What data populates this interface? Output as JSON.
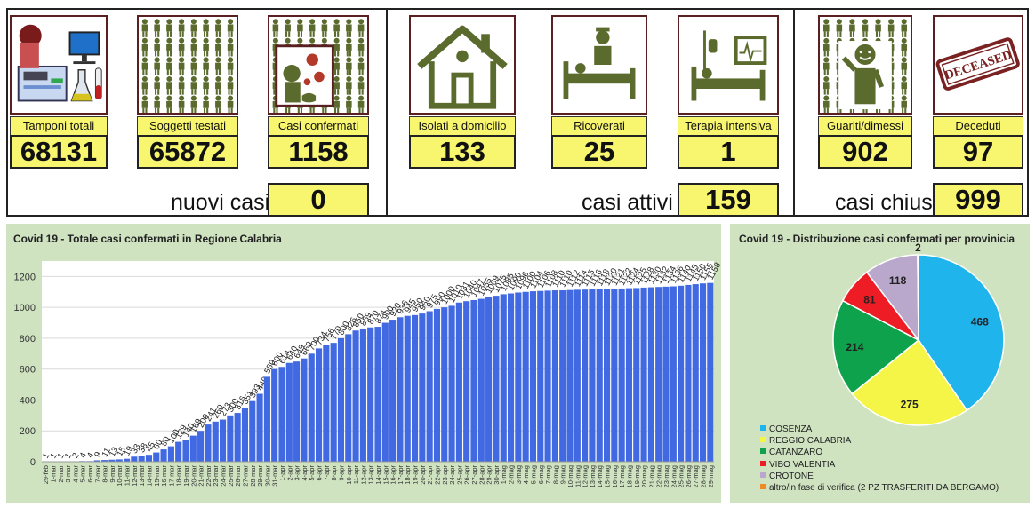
{
  "tiles": {
    "tamponi": {
      "label": "Tamponi totali",
      "value": "68131",
      "icon": "lab-icon"
    },
    "soggetti": {
      "label": "Soggetti testati",
      "value": "65872",
      "icon": "people-grid-icon"
    },
    "casi": {
      "label": "Casi confermati",
      "value": "1158",
      "icon": "virus-icon"
    },
    "isolati": {
      "label": "Isolati a domicilio",
      "value": "133",
      "icon": "house-icon"
    },
    "ricoverati": {
      "label": "Ricoverati",
      "value": "25",
      "icon": "hospital-bed-icon"
    },
    "terapia": {
      "label": "Terapia intensiva",
      "value": "1",
      "icon": "icu-bed-icon"
    },
    "guariti": {
      "label": "Guariti/dimessi",
      "value": "902",
      "icon": "recovered-person-icon"
    },
    "deceduti": {
      "label": "Deceduti",
      "value": "97",
      "icon": "deceased-stamp-icon",
      "stamp": "DECEASED"
    }
  },
  "summary": {
    "nuovi": {
      "label": "nuovi casi",
      "value": "0"
    },
    "attivi": {
      "label": "casi attivi",
      "value": "159"
    },
    "chiusi": {
      "label": "casi chiusi",
      "value": "999"
    }
  },
  "colors": {
    "yellow": "#f8f66f",
    "bar": "#4169e1",
    "panel": "#cfe3c1",
    "icon": "#5b6b2e",
    "frame": "#5a1f20"
  },
  "chart_data": [
    {
      "type": "bar",
      "title": "Covid 19 - Totale casi confermati in Regione Calabria",
      "ylim": [
        0,
        1300
      ],
      "yticks": [
        0,
        200,
        400,
        600,
        800,
        1000,
        1200
      ],
      "grid": true,
      "categories": [
        "29-feb",
        "1-mar",
        "2-mar",
        "3-mar",
        "4-mar",
        "5-mar",
        "6-mar",
        "7-mar",
        "8-mar",
        "9-mar",
        "10-mar",
        "11-mar",
        "12-mar",
        "13-mar",
        "14-mar",
        "15-mar",
        "16-mar",
        "17-mar",
        "18-mar",
        "19-mar",
        "20-mar",
        "21-mar",
        "22-mar",
        "23-mar",
        "24-mar",
        "25-mar",
        "26-mar",
        "27-mar",
        "28-mar",
        "29-mar",
        "30-mar",
        "31-mar",
        "1-apr",
        "2-apr",
        "3-apr",
        "4-apr",
        "5-apr",
        "6-apr",
        "7-apr",
        "8-apr",
        "9-apr",
        "10-apr",
        "11-apr",
        "12-apr",
        "13-apr",
        "14-apr",
        "15-apr",
        "16-apr",
        "17-apr",
        "18-apr",
        "19-apr",
        "20-apr",
        "21-apr",
        "22-apr",
        "23-apr",
        "24-apr",
        "25-apr",
        "26-apr",
        "27-apr",
        "28-apr",
        "29-apr",
        "30-apr",
        "1-mag",
        "2-mag",
        "3-mag",
        "4-mag",
        "5-mag",
        "6-mag",
        "7-mag",
        "8-mag",
        "9-mag",
        "10-mag",
        "11-mag",
        "12-mag",
        "13-mag",
        "14-mag",
        "15-mag",
        "16-mag",
        "17-mag",
        "18-mag",
        "19-mag",
        "20-mag",
        "21-mag",
        "22-mag",
        "23-mag",
        "24-mag",
        "25-mag",
        "26-mag",
        "27-mag",
        "28-mag",
        "29-mag"
      ],
      "values": [
        1,
        1,
        1,
        1,
        2,
        4,
        4,
        9,
        11,
        13,
        15,
        19,
        33,
        38,
        45,
        60,
        80,
        100,
        129,
        140,
        169,
        200,
        241,
        260,
        273,
        300,
        316,
        351,
        393,
        440,
        550,
        600,
        614,
        640,
        649,
        669,
        700,
        734,
        756,
        770,
        800,
        826,
        850,
        859,
        870,
        874,
        900,
        920,
        936,
        945,
        950,
        960,
        975,
        990,
        1000,
        1010,
        1031,
        1040,
        1047,
        1055,
        1069,
        1075,
        1085,
        1090,
        1096,
        1100,
        1104,
        1106,
        1108,
        1110,
        1110,
        1112,
        1114,
        1115,
        1116,
        1118,
        1120,
        1121,
        1122,
        1124,
        1125,
        1128,
        1130,
        1132,
        1134,
        1136,
        1140,
        1145,
        1150,
        1155,
        1158
      ]
    },
    {
      "type": "pie",
      "title": "Covid 19 - Distribuzione casi confermati per provinicia",
      "legend": "bottom-left",
      "slices": [
        {
          "name": "COSENZA",
          "value": 468,
          "color": "#1fb4ec"
        },
        {
          "name": "REGGIO CALABRIA",
          "value": 275,
          "color": "#f5f547"
        },
        {
          "name": "CATANZARO",
          "value": 214,
          "color": "#0fa24c"
        },
        {
          "name": "VIBO VALENTIA",
          "value": 81,
          "color": "#ee1c24"
        },
        {
          "name": "CROTONE",
          "value": 118,
          "color": "#b9a7cc"
        },
        {
          "name": "altro/in fase di verifica (2 PZ TRASFERITI DA BERGAMO)",
          "value": 2,
          "color": "#f08a24"
        }
      ]
    }
  ]
}
